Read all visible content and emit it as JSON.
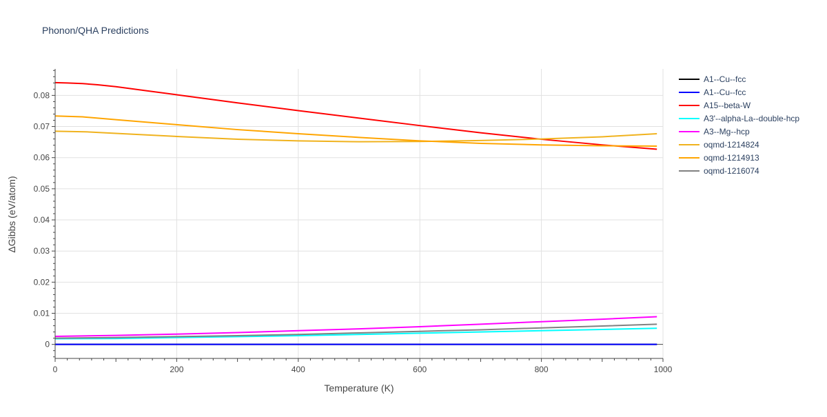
{
  "chart_data": {
    "type": "line",
    "title": "Phonon/QHA Predictions",
    "xlabel": "Temperature (K)",
    "ylabel": "ΔGibbs (eV/atom)",
    "xlim": [
      0,
      1000
    ],
    "ylim": [
      -0.0045,
      0.0885
    ],
    "x_ticks": [
      0,
      200,
      400,
      600,
      800,
      1000
    ],
    "x_tick_labels": [
      "0",
      "200",
      "400",
      "600",
      "800",
      "1000"
    ],
    "y_ticks": [
      0,
      0.01,
      0.02,
      0.03,
      0.04,
      0.05,
      0.06,
      0.07,
      0.08
    ],
    "y_tick_labels": [
      "0",
      "0.01",
      "0.02",
      "0.03",
      "0.04",
      "0.05",
      "0.06",
      "0.07",
      "0.08"
    ],
    "grid": true,
    "legend_position": "right",
    "series": [
      {
        "name": "A1--Cu--fcc",
        "color": "#000000",
        "x": [
          0,
          100,
          200,
          300,
          400,
          500,
          600,
          700,
          800,
          900,
          990
        ],
        "y": [
          0,
          0,
          0,
          0,
          0,
          0,
          0,
          0,
          0,
          0,
          0
        ]
      },
      {
        "name": "A1--Cu--fcc",
        "color": "#0000ff",
        "x": [
          0,
          100,
          200,
          300,
          400,
          500,
          600,
          700,
          800,
          900,
          990
        ],
        "y": [
          0,
          0,
          0,
          0,
          0,
          0,
          0,
          0,
          0,
          0,
          0
        ]
      },
      {
        "name": "A15--beta-W",
        "color": "#ff0000",
        "x": [
          0,
          20,
          45,
          70,
          100,
          150,
          200,
          300,
          400,
          500,
          600,
          700,
          800,
          900,
          990
        ],
        "y": [
          0.0841,
          0.084,
          0.0838,
          0.0834,
          0.0828,
          0.0815,
          0.0802,
          0.0776,
          0.0751,
          0.0727,
          0.0703,
          0.068,
          0.0659,
          0.0641,
          0.0627
        ]
      },
      {
        "name": "A3'--alpha-La--double-hcp",
        "color": "#00ffff",
        "x": [
          0,
          100,
          200,
          300,
          400,
          500,
          600,
          700,
          800,
          900,
          990
        ],
        "y": [
          0.0018,
          0.0019,
          0.0022,
          0.0025,
          0.0028,
          0.0032,
          0.0036,
          0.004,
          0.0044,
          0.0048,
          0.0052
        ]
      },
      {
        "name": "A3--Mg--hcp",
        "color": "#ff00ff",
        "x": [
          0,
          100,
          200,
          300,
          400,
          500,
          600,
          700,
          800,
          900,
          990
        ],
        "y": [
          0.0026,
          0.0029,
          0.0033,
          0.0038,
          0.0044,
          0.005,
          0.0057,
          0.0065,
          0.0073,
          0.0081,
          0.0089
        ]
      },
      {
        "name": "oqmd-1214824",
        "color": "#f0b21d",
        "x": [
          0,
          50,
          100,
          200,
          300,
          400,
          500,
          600,
          700,
          800,
          900,
          990
        ],
        "y": [
          0.0685,
          0.0683,
          0.0678,
          0.0668,
          0.0659,
          0.0654,
          0.0651,
          0.0652,
          0.0655,
          0.066,
          0.0667,
          0.0677
        ]
      },
      {
        "name": "oqmd-1214913",
        "color": "#ffa500",
        "x": [
          0,
          45,
          100,
          200,
          300,
          400,
          500,
          600,
          700,
          800,
          900,
          990
        ],
        "y": [
          0.0734,
          0.0731,
          0.0722,
          0.0706,
          0.069,
          0.0677,
          0.0665,
          0.0654,
          0.0646,
          0.0641,
          0.0638,
          0.0637
        ]
      },
      {
        "name": "oqmd-1216074",
        "color": "#808080",
        "x": [
          0,
          100,
          200,
          300,
          400,
          500,
          600,
          700,
          800,
          900,
          990
        ],
        "y": [
          0.002,
          0.0022,
          0.0025,
          0.0028,
          0.0032,
          0.0037,
          0.0042,
          0.0047,
          0.0053,
          0.0059,
          0.0065
        ]
      }
    ]
  }
}
